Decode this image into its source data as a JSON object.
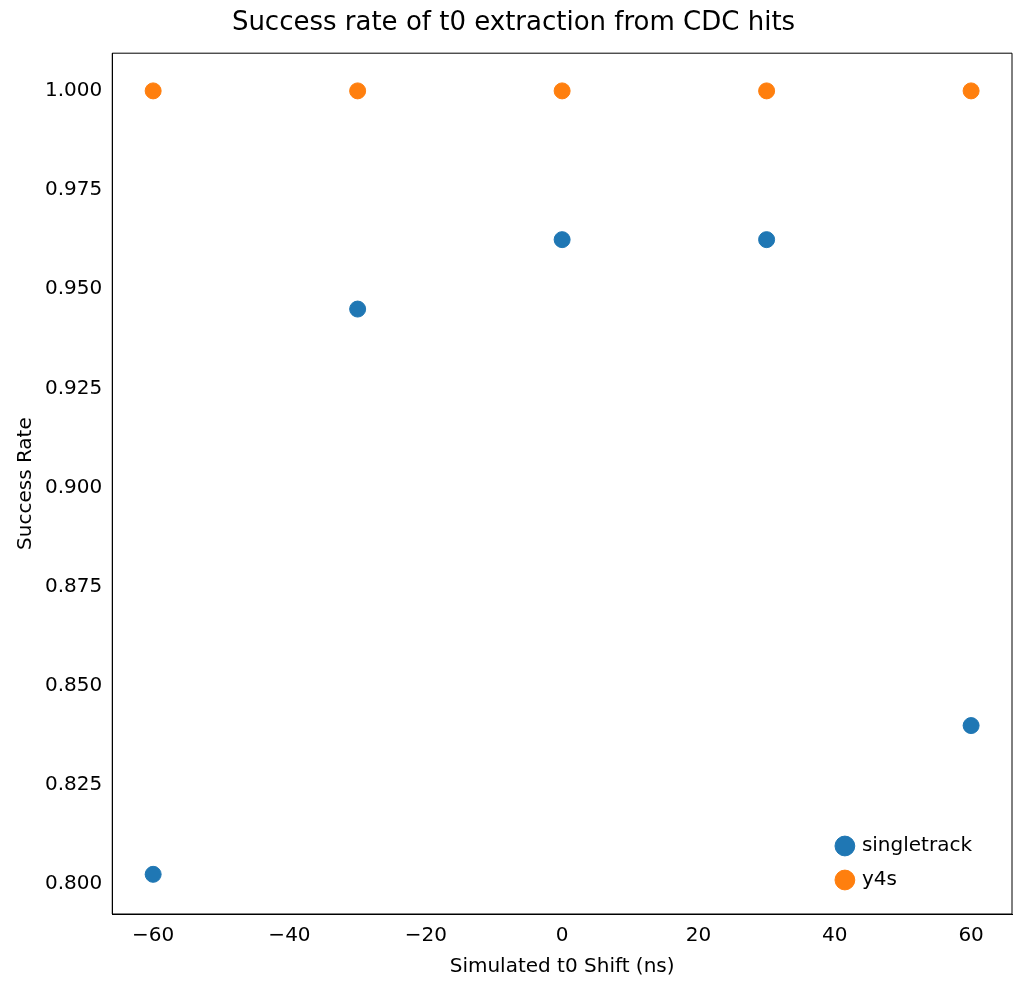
{
  "chart_data": {
    "type": "scatter",
    "title": "Success rate of t0 extraction from CDC hits",
    "xlabel": "Simulated t0 Shift (ns)",
    "ylabel": "Success Rate",
    "x": [
      -60,
      -30,
      0,
      30,
      60
    ],
    "series": [
      {
        "name": "singletrack",
        "color": "#1f77b4",
        "values": [
          0.8025,
          0.945,
          0.9625,
          0.9625,
          0.84
        ]
      },
      {
        "name": "y4s",
        "color": "#ff7f0e",
        "values": [
          1.0,
          1.0,
          1.0,
          1.0,
          1.0
        ]
      }
    ],
    "xlim": [
      -66,
      66
    ],
    "xticks": [
      {
        "value": -60,
        "label": "−60"
      },
      {
        "value": -40,
        "label": "−40"
      },
      {
        "value": -20,
        "label": "−20"
      },
      0,
      20,
      40,
      60
    ],
    "ylim": [
      0.7925,
      1.0095
    ],
    "yticks": [
      {
        "value": 0.8,
        "label": "0.800"
      },
      {
        "value": 0.825,
        "label": "0.825"
      },
      {
        "value": 0.85,
        "label": "0.850"
      },
      {
        "value": 0.875,
        "label": "0.875"
      },
      {
        "value": 0.9,
        "label": "0.900"
      },
      {
        "value": 0.925,
        "label": "0.925"
      },
      {
        "value": 0.95,
        "label": "0.950"
      },
      {
        "value": 0.975,
        "label": "0.975"
      },
      {
        "value": 1.0,
        "label": "1.000"
      }
    ],
    "grid": false,
    "legend": "bottom right",
    "marker": "circle"
  }
}
